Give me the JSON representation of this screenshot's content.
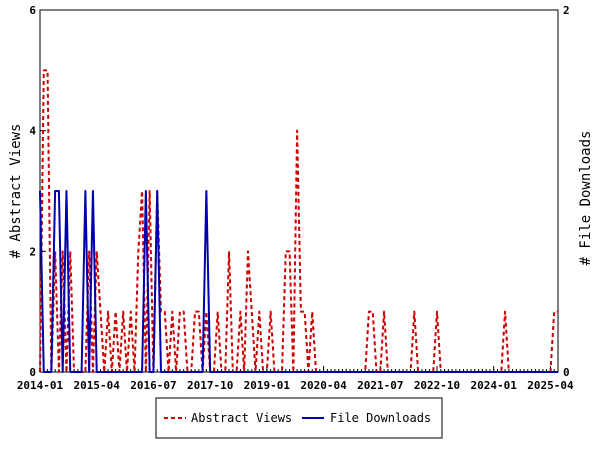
{
  "chart_data": {
    "type": "line",
    "ylabel_left": "# Abstract Views",
    "ylabel_right": "# File Downloads",
    "ylim_left": [
      0,
      6
    ],
    "ylim_right": [
      0,
      2
    ],
    "yticks_left": [
      "0",
      "2",
      "4",
      "6"
    ],
    "yticks_right": [
      "0",
      "2"
    ],
    "xlim": [
      "2014-01",
      "2025-06"
    ],
    "xtick_labels": [
      "2014-01",
      "2015-04",
      "2016-07",
      "2017-10",
      "2019-01",
      "2020-04",
      "2021-07",
      "2022-10",
      "2024-01",
      "2025-04"
    ],
    "grid": false,
    "legend_position": "bottom",
    "colors": {
      "abstract_views": "#cc0000",
      "file_downloads": "#0000aa"
    },
    "series": [
      {
        "name": "Abstract Views",
        "axis": "left",
        "style": "dashed",
        "points": [
          [
            "2014-01",
            0
          ],
          [
            "2014-02",
            5
          ],
          [
            "2014-03",
            5
          ],
          [
            "2014-04",
            0
          ],
          [
            "2014-05",
            2
          ],
          [
            "2014-06",
            0
          ],
          [
            "2014-07",
            2
          ],
          [
            "2014-08",
            0
          ],
          [
            "2014-09",
            2
          ],
          [
            "2014-10",
            0
          ],
          [
            "2014-11",
            0
          ],
          [
            "2014-12",
            0
          ],
          [
            "2015-01",
            0
          ],
          [
            "2015-02",
            2
          ],
          [
            "2015-03",
            0
          ],
          [
            "2015-04",
            2
          ],
          [
            "2015-05",
            1
          ],
          [
            "2015-06",
            0
          ],
          [
            "2015-07",
            1
          ],
          [
            "2015-08",
            0
          ],
          [
            "2015-09",
            1
          ],
          [
            "2015-10",
            0
          ],
          [
            "2015-11",
            1
          ],
          [
            "2015-12",
            0
          ],
          [
            "2016-01",
            1
          ],
          [
            "2016-02",
            0
          ],
          [
            "2016-03",
            2
          ],
          [
            "2016-04",
            3
          ],
          [
            "2016-05",
            0
          ],
          [
            "2016-06",
            3
          ],
          [
            "2016-07",
            0
          ],
          [
            "2016-08",
            3
          ],
          [
            "2016-09",
            1
          ],
          [
            "2016-10",
            1
          ],
          [
            "2016-11",
            0
          ],
          [
            "2016-12",
            1
          ],
          [
            "2017-01",
            0
          ],
          [
            "2017-02",
            1
          ],
          [
            "2017-03",
            1
          ],
          [
            "2017-04",
            0
          ],
          [
            "2017-05",
            0
          ],
          [
            "2017-06",
            1
          ],
          [
            "2017-07",
            1
          ],
          [
            "2017-08",
            0
          ],
          [
            "2017-09",
            1
          ],
          [
            "2017-10",
            0
          ],
          [
            "2017-11",
            0
          ],
          [
            "2017-12",
            1
          ],
          [
            "2018-01",
            0
          ],
          [
            "2018-02",
            0
          ],
          [
            "2018-03",
            2
          ],
          [
            "2018-04",
            0
          ],
          [
            "2018-05",
            0
          ],
          [
            "2018-06",
            1
          ],
          [
            "2018-07",
            0
          ],
          [
            "2018-08",
            2
          ],
          [
            "2018-09",
            1
          ],
          [
            "2018-10",
            0
          ],
          [
            "2018-11",
            1
          ],
          [
            "2018-12",
            0
          ],
          [
            "2019-01",
            0
          ],
          [
            "2019-02",
            1
          ],
          [
            "2019-03",
            0
          ],
          [
            "2019-04",
            0
          ],
          [
            "2019-05",
            0
          ],
          [
            "2019-06",
            2
          ],
          [
            "2019-07",
            2
          ],
          [
            "2019-08",
            0
          ],
          [
            "2019-09",
            4
          ],
          [
            "2019-10",
            1
          ],
          [
            "2019-11",
            1
          ],
          [
            "2019-12",
            0
          ],
          [
            "2020-01",
            1
          ],
          [
            "2020-02",
            0
          ],
          [
            "2020-03",
            0
          ],
          [
            "2020-04",
            0
          ],
          [
            "2020-05",
            0
          ],
          [
            "2020-06",
            0
          ],
          [
            "2020-07",
            0
          ],
          [
            "2020-08",
            0
          ],
          [
            "2020-09",
            0
          ],
          [
            "2020-10",
            0
          ],
          [
            "2020-11",
            0
          ],
          [
            "2020-12",
            0
          ],
          [
            "2021-01",
            0
          ],
          [
            "2021-02",
            0
          ],
          [
            "2021-03",
            0
          ],
          [
            "2021-04",
            1
          ],
          [
            "2021-05",
            1
          ],
          [
            "2021-06",
            0
          ],
          [
            "2021-07",
            0
          ],
          [
            "2021-08",
            1
          ],
          [
            "2021-09",
            0
          ],
          [
            "2021-10",
            0
          ],
          [
            "2021-11",
            0
          ],
          [
            "2021-12",
            0
          ],
          [
            "2022-01",
            0
          ],
          [
            "2022-02",
            0
          ],
          [
            "2022-03",
            0
          ],
          [
            "2022-04",
            1
          ],
          [
            "2022-05",
            0
          ],
          [
            "2022-06",
            0
          ],
          [
            "2022-07",
            0
          ],
          [
            "2022-08",
            0
          ],
          [
            "2022-09",
            0
          ],
          [
            "2022-10",
            1
          ],
          [
            "2022-11",
            0
          ],
          [
            "2022-12",
            0
          ],
          [
            "2023-01",
            0
          ],
          [
            "2023-02",
            0
          ],
          [
            "2023-03",
            0
          ],
          [
            "2023-04",
            0
          ],
          [
            "2023-05",
            0
          ],
          [
            "2023-06",
            0
          ],
          [
            "2023-07",
            0
          ],
          [
            "2023-08",
            0
          ],
          [
            "2023-09",
            0
          ],
          [
            "2023-10",
            0
          ],
          [
            "2023-11",
            0
          ],
          [
            "2023-12",
            0
          ],
          [
            "2024-01",
            0
          ],
          [
            "2024-02",
            0
          ],
          [
            "2024-03",
            0
          ],
          [
            "2024-04",
            1
          ],
          [
            "2024-05",
            0
          ],
          [
            "2024-06",
            0
          ],
          [
            "2024-07",
            0
          ],
          [
            "2024-08",
            0
          ],
          [
            "2024-09",
            0
          ],
          [
            "2024-10",
            0
          ],
          [
            "2024-11",
            0
          ],
          [
            "2024-12",
            0
          ],
          [
            "2025-01",
            0
          ],
          [
            "2025-02",
            0
          ],
          [
            "2025-03",
            0
          ],
          [
            "2025-04",
            0
          ],
          [
            "2025-05",
            1
          ],
          [
            "2025-06",
            1
          ]
        ]
      },
      {
        "name": "File Downloads",
        "axis": "right",
        "style": "solid",
        "points": [
          [
            "2014-01",
            1
          ],
          [
            "2014-02",
            0
          ],
          [
            "2014-03",
            0
          ],
          [
            "2014-04",
            0
          ],
          [
            "2014-05",
            1
          ],
          [
            "2014-06",
            1
          ],
          [
            "2014-07",
            0
          ],
          [
            "2014-08",
            1
          ],
          [
            "2014-09",
            0
          ],
          [
            "2014-10",
            0
          ],
          [
            "2014-11",
            0
          ],
          [
            "2014-12",
            0
          ],
          [
            "2015-01",
            1
          ],
          [
            "2015-02",
            0
          ],
          [
            "2015-03",
            1
          ],
          [
            "2015-04",
            0
          ],
          [
            "2015-05",
            0
          ],
          [
            "2015-06",
            0
          ],
          [
            "2015-07",
            0
          ],
          [
            "2015-08",
            0
          ],
          [
            "2015-09",
            0
          ],
          [
            "2015-10",
            0
          ],
          [
            "2015-11",
            0
          ],
          [
            "2015-12",
            0
          ],
          [
            "2016-01",
            0
          ],
          [
            "2016-02",
            0
          ],
          [
            "2016-03",
            0
          ],
          [
            "2016-04",
            0
          ],
          [
            "2016-05",
            1
          ],
          [
            "2016-06",
            0
          ],
          [
            "2016-07",
            0
          ],
          [
            "2016-08",
            1
          ],
          [
            "2016-09",
            0
          ],
          [
            "2016-10",
            0
          ],
          [
            "2016-11",
            0
          ],
          [
            "2016-12",
            0
          ],
          [
            "2017-01",
            0
          ],
          [
            "2017-02",
            0
          ],
          [
            "2017-03",
            0
          ],
          [
            "2017-04",
            0
          ],
          [
            "2017-05",
            0
          ],
          [
            "2017-06",
            0
          ],
          [
            "2017-07",
            0
          ],
          [
            "2017-08",
            0
          ],
          [
            "2017-09",
            1
          ],
          [
            "2017-10",
            0
          ],
          [
            "2017-11",
            0
          ],
          [
            "2017-12",
            0
          ],
          [
            "2018-01",
            0
          ],
          [
            "2018-02",
            0
          ],
          [
            "2018-03",
            0
          ],
          [
            "2018-04",
            0
          ],
          [
            "2018-05",
            0
          ],
          [
            "2018-06",
            0
          ],
          [
            "2018-07",
            0
          ],
          [
            "2018-08",
            0
          ],
          [
            "2018-09",
            0
          ],
          [
            "2018-10",
            0
          ],
          [
            "2018-11",
            0
          ],
          [
            "2018-12",
            0
          ],
          [
            "2019-01",
            0
          ],
          [
            "2019-02",
            0
          ],
          [
            "2019-03",
            0
          ],
          [
            "2019-04",
            0
          ],
          [
            "2019-05",
            0
          ],
          [
            "2019-06",
            0
          ],
          [
            "2019-07",
            0
          ],
          [
            "2019-08",
            0
          ],
          [
            "2019-09",
            0
          ],
          [
            "2019-10",
            0
          ],
          [
            "2019-11",
            0
          ],
          [
            "2019-12",
            0
          ],
          [
            "2020-01",
            0
          ],
          [
            "2020-02",
            0
          ],
          [
            "2020-03",
            0
          ],
          [
            "2020-04",
            0
          ],
          [
            "2020-05",
            0
          ],
          [
            "2020-06",
            0
          ],
          [
            "2020-07",
            0
          ],
          [
            "2020-08",
            0
          ],
          [
            "2020-09",
            0
          ],
          [
            "2020-10",
            0
          ],
          [
            "2020-11",
            0
          ],
          [
            "2020-12",
            0
          ],
          [
            "2021-01",
            0
          ],
          [
            "2021-02",
            0
          ],
          [
            "2021-03",
            0
          ],
          [
            "2021-04",
            0
          ],
          [
            "2021-05",
            0
          ],
          [
            "2021-06",
            0
          ],
          [
            "2021-07",
            0
          ],
          [
            "2021-08",
            0
          ],
          [
            "2021-09",
            0
          ],
          [
            "2021-10",
            0
          ],
          [
            "2021-11",
            0
          ],
          [
            "2021-12",
            0
          ],
          [
            "2022-01",
            0
          ],
          [
            "2022-02",
            0
          ],
          [
            "2022-03",
            0
          ],
          [
            "2022-04",
            0
          ],
          [
            "2022-05",
            0
          ],
          [
            "2022-06",
            0
          ],
          [
            "2022-07",
            0
          ],
          [
            "2022-08",
            0
          ],
          [
            "2022-09",
            0
          ],
          [
            "2022-10",
            0
          ],
          [
            "2022-11",
            0
          ],
          [
            "2022-12",
            0
          ],
          [
            "2023-01",
            0
          ],
          [
            "2023-02",
            0
          ],
          [
            "2023-03",
            0
          ],
          [
            "2023-04",
            0
          ],
          [
            "2023-05",
            0
          ],
          [
            "2023-06",
            0
          ],
          [
            "2023-07",
            0
          ],
          [
            "2023-08",
            0
          ],
          [
            "2023-09",
            0
          ],
          [
            "2023-10",
            0
          ],
          [
            "2023-11",
            0
          ],
          [
            "2023-12",
            0
          ],
          [
            "2024-01",
            0
          ],
          [
            "2024-02",
            0
          ],
          [
            "2024-03",
            0
          ],
          [
            "2024-04",
            0
          ],
          [
            "2024-05",
            0
          ],
          [
            "2024-06",
            0
          ],
          [
            "2024-07",
            0
          ],
          [
            "2024-08",
            0
          ],
          [
            "2024-09",
            0
          ],
          [
            "2024-10",
            0
          ],
          [
            "2024-11",
            0
          ],
          [
            "2024-12",
            0
          ],
          [
            "2025-01",
            0
          ],
          [
            "2025-02",
            0
          ],
          [
            "2025-03",
            0
          ],
          [
            "2025-04",
            0
          ],
          [
            "2025-05",
            0
          ],
          [
            "2025-06",
            0
          ]
        ]
      }
    ]
  }
}
